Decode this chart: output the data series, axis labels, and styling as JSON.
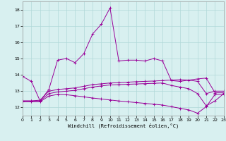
{
  "background_color": "#d8f0f0",
  "grid_color": "#b0d8d8",
  "line_color": "#990099",
  "xlabel": "Windchill (Refroidissement éolien,°C)",
  "xlim": [
    0,
    23
  ],
  "ylim": [
    11.5,
    18.5
  ],
  "yticks": [
    12,
    13,
    14,
    15,
    16,
    17,
    18
  ],
  "xticks": [
    0,
    1,
    2,
    3,
    4,
    5,
    6,
    7,
    8,
    9,
    10,
    11,
    12,
    13,
    14,
    15,
    16,
    17,
    18,
    19,
    20,
    21,
    22,
    23
  ],
  "series": {
    "main": {
      "x": [
        0,
        1,
        2,
        3,
        4,
        5,
        6,
        7,
        8,
        9,
        10,
        11,
        12,
        13,
        14,
        15,
        16,
        17,
        18,
        20,
        21,
        22,
        23
      ],
      "y": [
        13.9,
        13.6,
        12.4,
        13.1,
        14.9,
        15.0,
        14.75,
        15.3,
        16.5,
        17.1,
        18.1,
        14.85,
        14.9,
        14.9,
        14.85,
        15.0,
        14.85,
        13.65,
        13.6,
        13.75,
        13.8,
        12.9,
        12.9
      ]
    },
    "upper": {
      "x": [
        0,
        1,
        2,
        3,
        4,
        5,
        6,
        7,
        8,
        9,
        10,
        11,
        12,
        13,
        14,
        15,
        16,
        17,
        18,
        19,
        20,
        21,
        22,
        23
      ],
      "y": [
        12.4,
        12.4,
        12.45,
        13.0,
        13.1,
        13.15,
        13.2,
        13.3,
        13.4,
        13.45,
        13.5,
        13.52,
        13.55,
        13.58,
        13.6,
        13.62,
        13.65,
        13.68,
        13.7,
        13.68,
        13.6,
        12.85,
        13.0,
        13.0
      ]
    },
    "mid": {
      "x": [
        0,
        1,
        2,
        3,
        4,
        5,
        6,
        7,
        8,
        9,
        10,
        11,
        12,
        13,
        14,
        15,
        16,
        17,
        18,
        19,
        20,
        21,
        22,
        23
      ],
      "y": [
        12.4,
        12.4,
        12.4,
        12.85,
        12.95,
        13.0,
        13.05,
        13.15,
        13.25,
        13.32,
        13.38,
        13.4,
        13.42,
        13.44,
        13.46,
        13.48,
        13.5,
        13.35,
        13.25,
        13.15,
        12.85,
        12.1,
        12.4,
        12.85
      ]
    },
    "lower": {
      "x": [
        0,
        1,
        2,
        3,
        4,
        5,
        6,
        7,
        8,
        9,
        10,
        11,
        12,
        13,
        14,
        15,
        16,
        17,
        18,
        19,
        20,
        21,
        22,
        23
      ],
      "y": [
        12.35,
        12.35,
        12.35,
        12.7,
        12.8,
        12.78,
        12.72,
        12.65,
        12.58,
        12.52,
        12.46,
        12.4,
        12.35,
        12.3,
        12.25,
        12.2,
        12.15,
        12.05,
        11.95,
        11.85,
        11.65,
        12.05,
        12.8,
        12.8
      ]
    }
  }
}
